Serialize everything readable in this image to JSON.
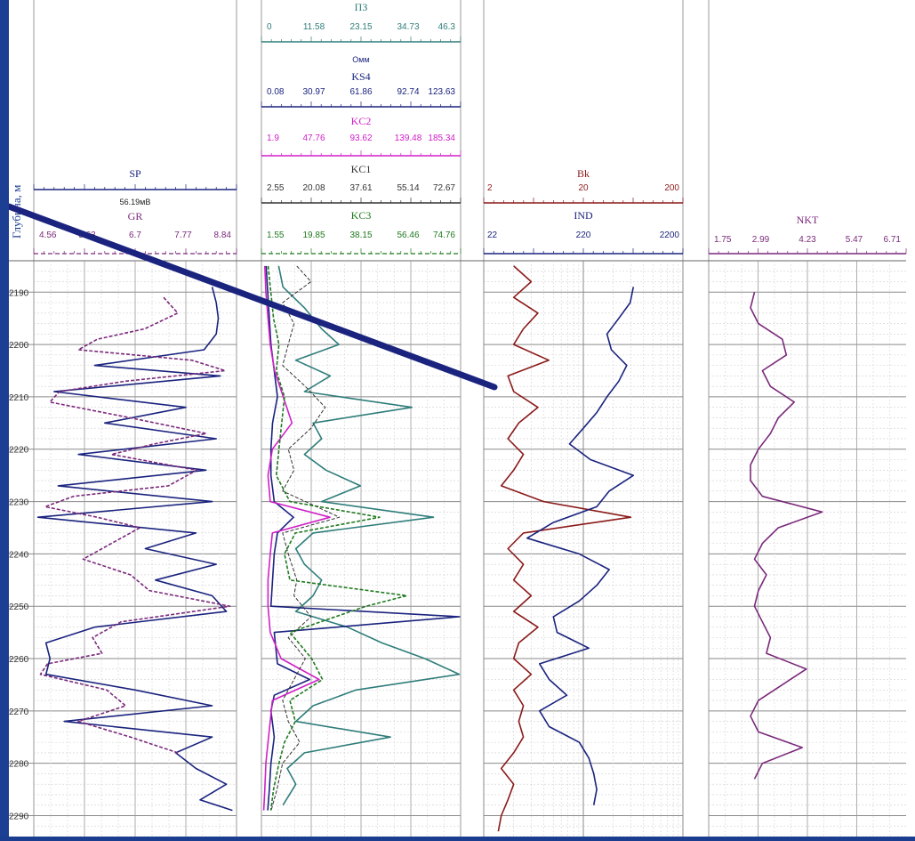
{
  "depth_axis": {
    "label": "Глубина, м",
    "ticks": [
      "2190",
      "2200",
      "2210",
      "2220",
      "2230",
      "2240",
      "2250",
      "2260",
      "2270",
      "2280",
      "2290"
    ]
  },
  "tracks": [
    {
      "id": "track1",
      "curves": [
        {
          "name": "SP",
          "unit": "56.19мВ",
          "color": "#1a237e",
          "ticks": []
        },
        {
          "name": "GR",
          "unit": "",
          "color": "#7b2a7b",
          "ticks": [
            "4.56",
            "5.63",
            "6.7",
            "7.77",
            "8.84"
          ]
        }
      ]
    },
    {
      "id": "track2",
      "curves": [
        {
          "name": "ПЗ",
          "unit": "",
          "color": "#2e7d7a",
          "ticks": [
            "0",
            "11.58",
            "23.15",
            "34.73",
            "46.3"
          ]
        },
        {
          "name": "KS4",
          "unit": "Омм",
          "color": "#1a237e",
          "ticks": [
            "0.08",
            "30.97",
            "61.86",
            "92.74",
            "123.63"
          ]
        },
        {
          "name": "KC2",
          "unit": "",
          "color": "#d020c8",
          "ticks": [
            "1.9",
            "47.76",
            "93.62",
            "139.48",
            "185.34"
          ]
        },
        {
          "name": "KC1",
          "unit": "",
          "color": "#333333",
          "ticks": [
            "2.55",
            "20.08",
            "37.61",
            "55.14",
            "72.67"
          ]
        },
        {
          "name": "KC3",
          "unit": "",
          "color": "#1f7a1f",
          "ticks": [
            "1.55",
            "19.85",
            "38.15",
            "56.46",
            "74.76"
          ]
        }
      ]
    },
    {
      "id": "track3",
      "curves": [
        {
          "name": "Bk",
          "unit": "",
          "color": "#8b1a1a",
          "ticks": [
            "2",
            "20",
            "200"
          ]
        },
        {
          "name": "IND",
          "unit": "",
          "color": "#1a237e",
          "ticks": [
            "22",
            "220",
            "2200"
          ]
        }
      ]
    },
    {
      "id": "track4",
      "curves": [
        {
          "name": "NKT",
          "unit": "",
          "color": "#7b2a7b",
          "ticks": [
            "1.75",
            "2.99",
            "4.23",
            "5.47",
            "6.71"
          ]
        }
      ]
    }
  ],
  "chart_data": {
    "type": "line",
    "title": "",
    "xlabel": "",
    "ylabel": "Глубина, м",
    "ylim": [
      2184,
      2294
    ],
    "series": [
      {
        "name": "SP",
        "track": 1,
        "xlim": [
          0,
          1
        ],
        "depth": [
          2189,
          2192,
          2195,
          2198,
          2201,
          2204,
          2206,
          2209,
          2212,
          2215,
          2218,
          2221,
          2224,
          2227,
          2230,
          2233,
          2236,
          2239,
          2242,
          2245,
          2248,
          2251,
          2254,
          2257,
          2260,
          2263,
          2266,
          2269,
          2272,
          2275,
          2278,
          2281,
          2284,
          2287,
          2289
        ],
        "x": [
          0.88,
          0.9,
          0.91,
          0.9,
          0.84,
          0.3,
          0.92,
          0.1,
          0.75,
          0.35,
          0.9,
          0.22,
          0.85,
          0.12,
          0.88,
          0.02,
          0.8,
          0.55,
          0.9,
          0.6,
          0.88,
          0.95,
          0.3,
          0.06,
          0.08,
          0.06,
          0.5,
          0.88,
          0.15,
          0.88,
          0.7,
          0.8,
          0.95,
          0.82,
          0.98
        ]
      },
      {
        "name": "GR",
        "track": 1,
        "xlim": [
          4.56,
          8.84
        ],
        "depth": [
          2191,
          2194,
          2197,
          2199,
          2201,
          2203,
          2205,
          2207,
          2209,
          2211,
          2214,
          2217,
          2219,
          2221,
          2224,
          2227,
          2229,
          2231,
          2233,
          2235,
          2238,
          2241,
          2244,
          2247,
          2250,
          2253,
          2256,
          2259,
          2261,
          2263,
          2266,
          2269,
          2272,
          2275,
          2278
        ],
        "x": [
          7.3,
          7.6,
          6.9,
          5.9,
          5.5,
          7.9,
          8.6,
          6.5,
          5.1,
          4.9,
          6.6,
          8.2,
          7.1,
          6.2,
          8.0,
          7.4,
          5.4,
          4.8,
          5.9,
          6.8,
          6.2,
          5.6,
          6.6,
          7.0,
          8.7,
          6.4,
          5.8,
          6.0,
          4.85,
          4.7,
          6.1,
          6.5,
          5.5,
          6.6,
          7.6
        ]
      },
      {
        "name": "ПЗ",
        "track": 2,
        "xlim": [
          0,
          46.3
        ],
        "depth": [
          2185,
          2189,
          2193,
          2197,
          2200,
          2203,
          2206,
          2209,
          2212,
          2215,
          2218,
          2221,
          2224,
          2227,
          2230,
          2233,
          2236,
          2239,
          2242,
          2245,
          2248,
          2251,
          2254,
          2257,
          2260,
          2263,
          2266,
          2269,
          2272,
          2275,
          2278,
          2281,
          2284,
          2288
        ],
        "x": [
          4,
          5,
          10,
          14,
          18,
          8,
          16,
          10,
          35,
          12,
          14,
          10,
          15,
          23,
          14,
          40,
          12,
          8,
          10,
          14,
          12,
          8,
          20,
          28,
          38,
          46,
          22,
          12,
          8,
          30,
          10,
          6,
          8,
          5
        ]
      },
      {
        "name": "KS4",
        "track": 2,
        "xlim": [
          0.08,
          123.63
        ],
        "depth": [
          2185,
          2190,
          2195,
          2200,
          2205,
          2210,
          2215,
          2220,
          2225,
          2230,
          2233,
          2236,
          2240,
          2245,
          2250,
          2252,
          2255,
          2258,
          2261,
          2264,
          2267,
          2270,
          2275,
          2280,
          2285,
          2289
        ],
        "x": [
          3,
          4,
          5,
          6,
          8,
          10,
          7,
          6,
          6,
          8,
          20,
          10,
          8,
          7,
          6,
          123,
          8,
          9,
          10,
          30,
          8,
          6,
          8,
          6,
          5,
          4
        ]
      },
      {
        "name": "KC2",
        "track": 2,
        "xlim": [
          1.9,
          185.34
        ],
        "depth": [
          2185,
          2190,
          2195,
          2200,
          2205,
          2210,
          2215,
          2220,
          2225,
          2230,
          2233,
          2236,
          2240,
          2245,
          2250,
          2255,
          2260,
          2264,
          2268,
          2272,
          2276,
          2280,
          2285,
          2289
        ],
        "x": [
          5,
          6,
          8,
          10,
          14,
          22,
          30,
          12,
          8,
          10,
          65,
          12,
          10,
          8,
          8,
          10,
          20,
          55,
          12,
          10,
          8,
          6,
          5,
          4
        ]
      },
      {
        "name": "KC1",
        "track": 2,
        "xlim": [
          2.55,
          72.67
        ],
        "depth": [
          2185,
          2188,
          2192,
          2196,
          2200,
          2204,
          2208,
          2212,
          2216,
          2220,
          2224,
          2228,
          2233,
          2236,
          2240,
          2245,
          2248,
          2252,
          2256,
          2260,
          2264,
          2268,
          2272,
          2276,
          2280,
          2285,
          2289
        ],
        "x": [
          15,
          20,
          10,
          14,
          12,
          10,
          18,
          25,
          20,
          12,
          14,
          10,
          30,
          10,
          12,
          15,
          14,
          20,
          12,
          18,
          14,
          10,
          12,
          16,
          10,
          8,
          6
        ]
      },
      {
        "name": "KC3",
        "track": 2,
        "xlim": [
          1.55,
          74.76
        ],
        "depth": [
          2185,
          2190,
          2195,
          2200,
          2205,
          2210,
          2215,
          2220,
          2225,
          2230,
          2233,
          2236,
          2240,
          2245,
          2248,
          2250,
          2255,
          2260,
          2264,
          2268,
          2272,
          2276,
          2280,
          2285,
          2289
        ],
        "x": [
          4,
          5,
          6,
          8,
          7,
          10,
          9,
          8,
          7,
          12,
          45,
          14,
          10,
          12,
          55,
          40,
          12,
          20,
          24,
          12,
          14,
          10,
          8,
          6,
          5
        ]
      },
      {
        "name": "Bk",
        "track": 3,
        "xlim": [
          2,
          200
        ],
        "log": true,
        "depth": [
          2185,
          2188,
          2191,
          2194,
          2197,
          2200,
          2203,
          2206,
          2209,
          2212,
          2215,
          2218,
          2221,
          2224,
          2227,
          2230,
          2233,
          2236,
          2239,
          2242,
          2245,
          2248,
          2251,
          2254,
          2257,
          2260,
          2263,
          2266,
          2269,
          2272,
          2275,
          2278,
          2281,
          2284,
          2287,
          2290,
          2293
        ],
        "x": [
          4,
          6,
          4,
          7,
          5,
          4,
          9,
          3.5,
          4,
          7,
          4.5,
          3.5,
          5,
          4,
          3,
          8,
          60,
          5,
          3.5,
          5,
          4,
          6,
          4,
          7,
          4.5,
          4,
          6,
          4,
          5,
          4.5,
          5,
          4,
          3,
          4,
          3.5,
          3,
          2.8
        ]
      },
      {
        "name": "IND",
        "track": 3,
        "xlim": [
          22,
          2200
        ],
        "log": true,
        "depth": [
          2189,
          2192,
          2195,
          2198,
          2201,
          2204,
          2207,
          2210,
          2213,
          2216,
          2219,
          2222,
          2225,
          2228,
          2231,
          2234,
          2237,
          2240,
          2243,
          2246,
          2249,
          2252,
          2255,
          2258,
          2261,
          2264,
          2267,
          2270,
          2273,
          2276,
          2279,
          2282,
          2285,
          2288
        ],
        "x": [
          700,
          650,
          500,
          380,
          420,
          600,
          500,
          380,
          300,
          220,
          160,
          260,
          700,
          400,
          300,
          110,
          60,
          200,
          400,
          300,
          200,
          110,
          120,
          250,
          80,
          100,
          150,
          80,
          100,
          200,
          250,
          280,
          300,
          280
        ]
      },
      {
        "name": "NKT",
        "track": 4,
        "xlim": [
          1.75,
          6.71
        ],
        "depth": [
          2190,
          2193,
          2196,
          2199,
          2202,
          2205,
          2208,
          2211,
          2214,
          2217,
          2220,
          2223,
          2226,
          2229,
          2232,
          2235,
          2238,
          2241,
          2244,
          2247,
          2250,
          2253,
          2256,
          2259,
          2262,
          2265,
          2268,
          2271,
          2274,
          2277,
          2280,
          2283
        ],
        "x": [
          2.9,
          2.8,
          3.0,
          3.6,
          3.7,
          3.1,
          3.3,
          3.9,
          3.5,
          3.3,
          3.0,
          2.8,
          2.8,
          3.1,
          4.6,
          3.5,
          3.1,
          2.9,
          3.2,
          3.0,
          2.9,
          3.1,
          3.3,
          3.2,
          4.2,
          3.6,
          3.0,
          2.8,
          3.0,
          4.1,
          3.1,
          2.9
        ]
      }
    ]
  }
}
